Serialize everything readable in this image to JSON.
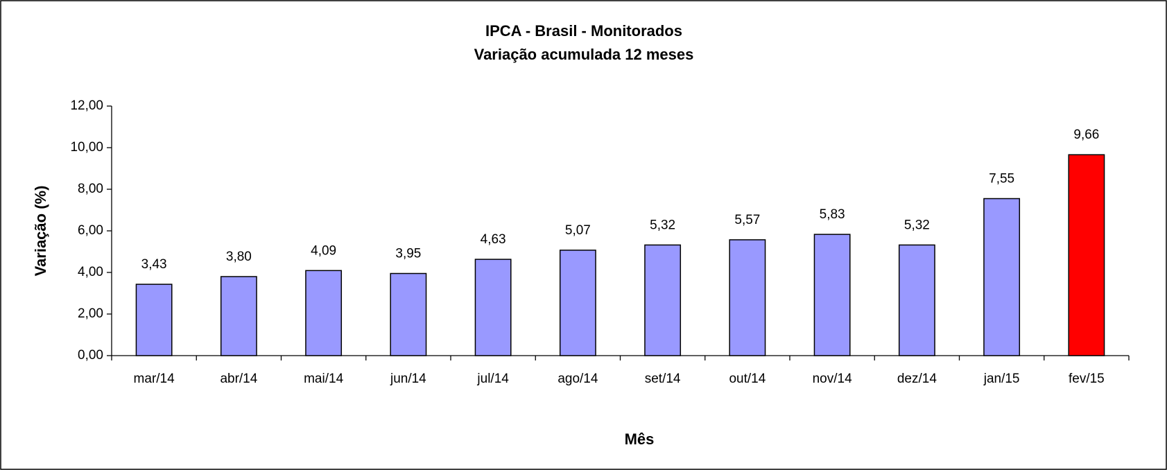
{
  "chart_data": {
    "type": "bar",
    "title": "IPCA - Brasil - Monitorados",
    "subtitle": "Variação acumulada 12 meses",
    "x_label": "Mês",
    "y_label": "Variação (%)",
    "categories": [
      "mar/14",
      "abr/14",
      "mai/14",
      "jun/14",
      "jul/14",
      "ago/14",
      "set/14",
      "out/14",
      "nov/14",
      "dez/14",
      "jan/15",
      "fev/15"
    ],
    "values": [
      3.43,
      3.8,
      4.09,
      3.95,
      4.63,
      5.07,
      5.32,
      5.57,
      5.83,
      5.32,
      7.55,
      9.66
    ],
    "value_labels": [
      "3,43",
      "3,80",
      "4,09",
      "3,95",
      "4,63",
      "5,07",
      "5,32",
      "5,57",
      "5,83",
      "5,32",
      "7,55",
      "9,66"
    ],
    "colors": [
      "#9999ff",
      "#9999ff",
      "#9999ff",
      "#9999ff",
      "#9999ff",
      "#9999ff",
      "#9999ff",
      "#9999ff",
      "#9999ff",
      "#9999ff",
      "#9999ff",
      "#ff0000"
    ],
    "ylim": [
      0,
      12
    ],
    "yticks": [
      {
        "value": 0,
        "label": "0,00"
      },
      {
        "value": 2,
        "label": "2,00"
      },
      {
        "value": 4,
        "label": "4,00"
      },
      {
        "value": 6,
        "label": "6,00"
      },
      {
        "value": 8,
        "label": "8,00"
      },
      {
        "value": 10,
        "label": "10,00"
      },
      {
        "value": 12,
        "label": "12,00"
      }
    ],
    "grid": false
  }
}
